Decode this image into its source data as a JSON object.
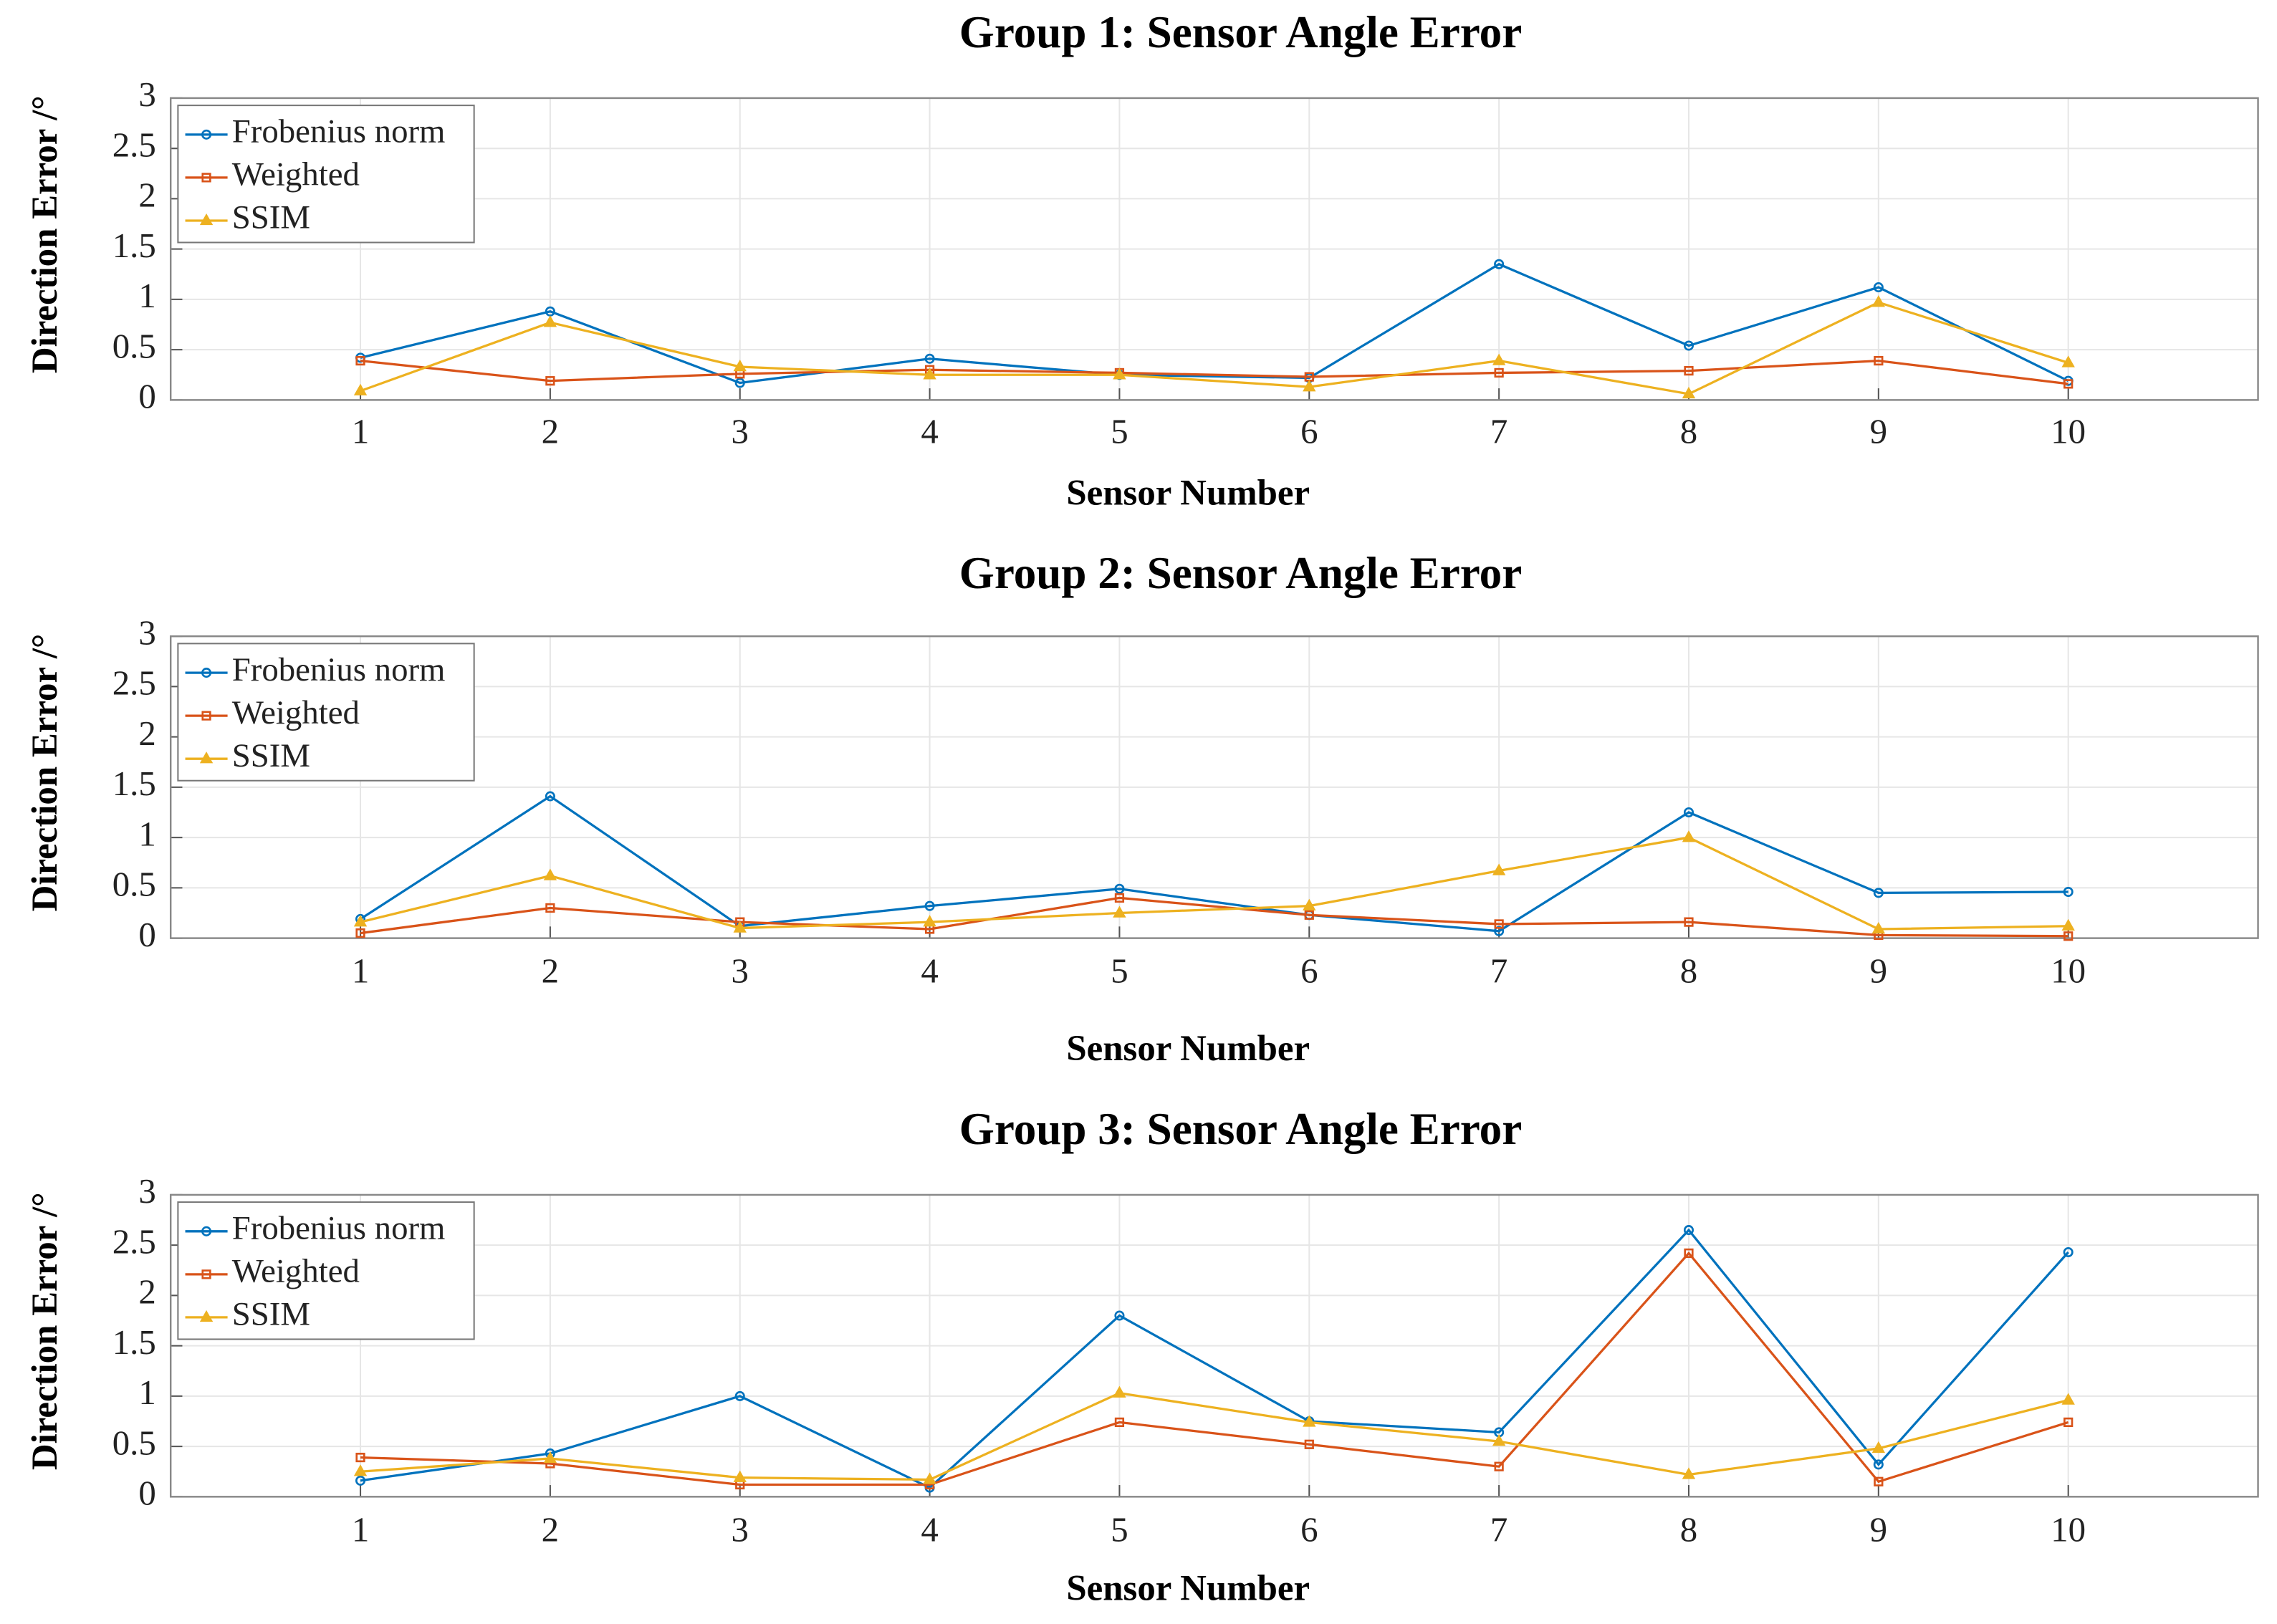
{
  "chart_data": [
    {
      "type": "line",
      "title": "Group 1: Sensor Angle Error",
      "x_label": "Sensor Number",
      "y_label": "Direction Error /°",
      "x": [
        1,
        2,
        3,
        4,
        5,
        6,
        7,
        8,
        9,
        10
      ],
      "xlim": [
        0,
        11
      ],
      "xticks": [
        1,
        2,
        3,
        4,
        5,
        6,
        7,
        8,
        9,
        10
      ],
      "ylim": [
        0,
        3
      ],
      "yticks": [
        0,
        0.5,
        1,
        1.5,
        2,
        2.5,
        3
      ],
      "grid": true,
      "legend_position": "northwest",
      "series": [
        {
          "name": "Frobenius norm",
          "color": "#0072BD",
          "marker": "circle",
          "values": [
            0.42,
            0.88,
            0.17,
            0.41,
            0.25,
            0.22,
            1.35,
            0.54,
            1.12,
            0.19
          ]
        },
        {
          "name": "Weighted",
          "color": "#D95319",
          "marker": "square",
          "values": [
            0.39,
            0.19,
            0.26,
            0.3,
            0.27,
            0.23,
            0.27,
            0.29,
            0.39,
            0.16
          ]
        },
        {
          "name": "SSIM",
          "color": "#EDB120",
          "marker": "triangle",
          "values": [
            0.09,
            0.77,
            0.33,
            0.25,
            0.25,
            0.13,
            0.39,
            0.06,
            0.97,
            0.37
          ]
        }
      ]
    },
    {
      "type": "line",
      "title": "Group 2: Sensor Angle Error",
      "x_label": "Sensor Number",
      "y_label": "Direction Error /°",
      "x": [
        1,
        2,
        3,
        4,
        5,
        6,
        7,
        8,
        9,
        10
      ],
      "xlim": [
        0,
        11
      ],
      "xticks": [
        1,
        2,
        3,
        4,
        5,
        6,
        7,
        8,
        9,
        10
      ],
      "ylim": [
        0,
        3
      ],
      "yticks": [
        0,
        0.5,
        1,
        1.5,
        2,
        2.5,
        3
      ],
      "grid": true,
      "legend_position": "northwest",
      "series": [
        {
          "name": "Frobenius norm",
          "color": "#0072BD",
          "marker": "circle",
          "values": [
            0.19,
            1.41,
            0.12,
            0.32,
            0.49,
            0.23,
            0.07,
            1.25,
            0.45,
            0.46
          ]
        },
        {
          "name": "Weighted",
          "color": "#D95319",
          "marker": "square",
          "values": [
            0.05,
            0.3,
            0.16,
            0.09,
            0.4,
            0.23,
            0.14,
            0.16,
            0.03,
            0.02
          ]
        },
        {
          "name": "SSIM",
          "color": "#EDB120",
          "marker": "triangle",
          "values": [
            0.16,
            0.62,
            0.1,
            0.16,
            0.25,
            0.32,
            0.67,
            1.0,
            0.09,
            0.12
          ]
        }
      ]
    },
    {
      "type": "line",
      "title": "Group 3: Sensor Angle Error",
      "x_label": "Sensor Number",
      "y_label": "Direction Error /°",
      "x": [
        1,
        2,
        3,
        4,
        5,
        6,
        7,
        8,
        9,
        10
      ],
      "xlim": [
        0,
        11
      ],
      "xticks": [
        1,
        2,
        3,
        4,
        5,
        6,
        7,
        8,
        9,
        10
      ],
      "ylim": [
        0,
        3
      ],
      "yticks": [
        0,
        0.5,
        1,
        1.5,
        2,
        2.5,
        3
      ],
      "grid": true,
      "legend_position": "northwest",
      "series": [
        {
          "name": "Frobenius norm",
          "color": "#0072BD",
          "marker": "circle",
          "values": [
            0.16,
            0.43,
            1.0,
            0.09,
            1.8,
            0.75,
            0.64,
            2.65,
            0.32,
            2.43
          ]
        },
        {
          "name": "Weighted",
          "color": "#D95319",
          "marker": "square",
          "values": [
            0.39,
            0.33,
            0.12,
            0.12,
            0.74,
            0.52,
            0.3,
            2.42,
            0.15,
            0.74
          ]
        },
        {
          "name": "SSIM",
          "color": "#EDB120",
          "marker": "triangle",
          "values": [
            0.25,
            0.38,
            0.19,
            0.17,
            1.03,
            0.74,
            0.55,
            0.22,
            0.48,
            0.96
          ]
        }
      ]
    }
  ]
}
